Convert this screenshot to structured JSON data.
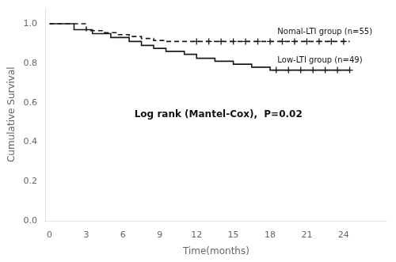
{
  "chart_data": {
    "type": "line",
    "xlabel": "Time(months)",
    "ylabel": "Cumulative Survival",
    "annotation": "Log rank (Mantel-Cox),  P=0.02",
    "xlim": [
      -0.3,
      27.5
    ],
    "ylim": [
      0.0,
      1.08
    ],
    "xticks": [
      0,
      3,
      6,
      9,
      12,
      15,
      18,
      21,
      24
    ],
    "yticks": [
      {
        "value": 0.0,
        "label": "0.0"
      },
      0.2,
      0.4,
      0.6,
      0.8,
      {
        "value": 1.0,
        "label": "1.0"
      }
    ],
    "grid": false,
    "series": [
      {
        "name": "Nomal-LTI group (n=55)",
        "type": "line",
        "line_style": "dashed",
        "color": "#1a1a1a",
        "x": [
          0,
          3.0,
          3.0,
          4.5,
          4.5,
          5.5,
          5.5,
          6.5,
          6.5,
          7.5,
          7.5,
          8.5,
          8.5,
          9.5,
          9.5,
          24.5
        ],
        "values": [
          1.0,
          1.0,
          0.965,
          0.965,
          0.955,
          0.955,
          0.945,
          0.945,
          0.935,
          0.935,
          0.925,
          0.925,
          0.915,
          0.915,
          0.91,
          0.91
        ]
      },
      {
        "type": "scatter",
        "marker": "plus",
        "color": "#1a1a1a",
        "x": [
          12,
          13,
          14,
          15,
          16,
          17,
          18,
          19,
          20,
          21,
          22,
          23,
          24
        ],
        "values": [
          0.91,
          0.91,
          0.91,
          0.91,
          0.91,
          0.91,
          0.91,
          0.91,
          0.91,
          0.91,
          0.91,
          0.91,
          0.91
        ]
      },
      {
        "name": "Low-LTI group (n=49)",
        "type": "line",
        "line_style": "solid",
        "color": "#1a1a1a",
        "x": [
          0,
          2.0,
          2.0,
          3.5,
          3.5,
          5.0,
          5.0,
          6.5,
          6.5,
          7.5,
          7.5,
          8.5,
          8.5,
          9.5,
          9.5,
          11.0,
          11.0,
          12.0,
          12.0,
          13.5,
          13.5,
          15.0,
          15.0,
          16.5,
          16.5,
          18.0,
          18.0,
          24.5
        ],
        "values": [
          1.0,
          1.0,
          0.97,
          0.97,
          0.95,
          0.95,
          0.93,
          0.93,
          0.91,
          0.91,
          0.89,
          0.89,
          0.875,
          0.875,
          0.86,
          0.86,
          0.845,
          0.845,
          0.825,
          0.825,
          0.81,
          0.81,
          0.795,
          0.795,
          0.78,
          0.78,
          0.765,
          0.765
        ]
      },
      {
        "type": "scatter",
        "marker": "plus",
        "color": "#1a1a1a",
        "x": [
          18.5,
          19.5,
          20.5,
          21.5,
          22.5,
          23.5,
          24.5
        ],
        "values": [
          0.765,
          0.765,
          0.765,
          0.765,
          0.765,
          0.765,
          0.765
        ]
      }
    ]
  }
}
